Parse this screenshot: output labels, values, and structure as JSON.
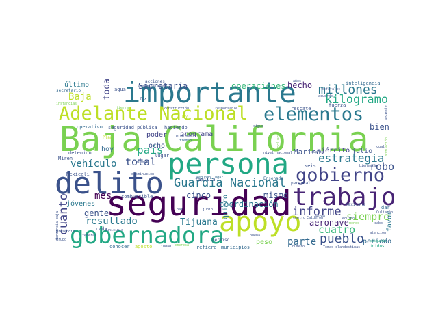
{
  "words": [
    {
      "text": "Baja California",
      "color": "#7ad151"
    },
    {
      "text": "importante",
      "color": "#2a788e"
    },
    {
      "text": "persona",
      "color": "#22a884"
    },
    {
      "text": "seguridad",
      "color": "#440154"
    },
    {
      "text": "delito",
      "color": "#3b528b"
    },
    {
      "text": "apoyo",
      "color": "#bddf26"
    },
    {
      "text": "gobernadora",
      "color": "#22a884"
    },
    {
      "text": "trabajo",
      "color": "#482475"
    },
    {
      "text": "Adelante Nacional",
      "color": "#bddf26"
    },
    {
      "text": "elementos",
      "color": "#2a788e"
    },
    {
      "text": "gobierno",
      "color": "#414487"
    },
    {
      "text": "Guardia Nacional",
      "color": "#2a788e"
    },
    {
      "text": "millones",
      "color": "#2a788e"
    },
    {
      "text": "kilogramo",
      "color": "#22a884"
    },
    {
      "text": "estrategia",
      "color": "#2a788e"
    },
    {
      "text": "vehículo",
      "color": "#2a788e"
    },
    {
      "text": "país",
      "color": "#22a884"
    },
    {
      "text": "total",
      "color": "#3b528b"
    },
    {
      "text": "cuanto",
      "color": "#414487"
    },
    {
      "text": "resultado",
      "color": "#2a788e"
    },
    {
      "text": "informe",
      "color": "#414487"
    },
    {
      "text": "pueblo",
      "color": "#3b528b"
    },
    {
      "text": "cuatro",
      "color": "#35b779"
    },
    {
      "text": "siempre",
      "color": "#7ad151"
    },
    {
      "text": "parte",
      "color": "#31688e"
    },
    {
      "text": "Tijuana",
      "color": "#2a788e"
    },
    {
      "text": "aeronave",
      "color": "#482475"
    },
    {
      "text": "robo",
      "color": "#3b528b"
    },
    {
      "text": "Baja",
      "color": "#bddf26"
    },
    {
      "text": "toda",
      "color": "#414487"
    },
    {
      "text": "Secretaría",
      "color": "#3b528b"
    },
    {
      "text": "operaciones",
      "color": "#35b779"
    },
    {
      "text": "hecho",
      "color": "#482475"
    },
    {
      "text": "mes",
      "color": "#440154"
    },
    {
      "text": "gente",
      "color": "#3b528b"
    },
    {
      "text": "cinco",
      "color": "#3b528b"
    },
    {
      "text": "Marina",
      "color": "#3b528b"
    },
    {
      "text": "Ejército",
      "color": "#414487"
    },
    {
      "text": "julio",
      "color": "#3b528b"
    },
    {
      "text": "bien",
      "color": "#3b528b"
    },
    {
      "text": "coordinación",
      "color": "#2a788e"
    },
    {
      "text": "mismo",
      "color": "#3b528b"
    },
    {
      "text": "jóvenes",
      "color": "#2a788e"
    },
    {
      "text": "último",
      "color": "#2a788e"
    },
    {
      "text": "hoy",
      "color": "#31688e"
    },
    {
      "text": "ocho",
      "color": "#3b528b"
    },
    {
      "text": "poder",
      "color": "#414487"
    },
    {
      "text": "programa",
      "color": "#414487"
    },
    {
      "text": "peso",
      "color": "#7ad151"
    },
    {
      "text": "periodo",
      "color": "#31688e"
    },
    {
      "text": "favor",
      "color": "#2a788e"
    },
    {
      "text": "quiero",
      "color": "#2a788e"
    },
    {
      "text": "inteligencia",
      "color": "#31688e"
    },
    {
      "text": "seguridad pública",
      "color": "#3b528b"
    },
    {
      "text": "haciendo",
      "color": "#3b528b"
    },
    {
      "text": "operativo",
      "color": "#31688e"
    },
    {
      "text": "detenido",
      "color": "#3b528b"
    },
    {
      "text": "Miren",
      "color": "#3b528b"
    },
    {
      "text": "Mexicali",
      "color": "#3b528b"
    },
    {
      "text": "combustible",
      "color": "#3b528b"
    },
    {
      "text": "cada",
      "color": "#3b528b"
    },
    {
      "text": "conocer",
      "color": "#31688e"
    },
    {
      "text": "agosto",
      "color": "#bddf26"
    },
    {
      "text": "refiere",
      "color": "#31688e"
    },
    {
      "text": "municipios",
      "color": "#31688e"
    },
    {
      "text": "dar",
      "color": "#31688e"
    },
    {
      "text": "familia",
      "color": "#3b528b"
    },
    {
      "text": "seis",
      "color": "#3b528b"
    },
    {
      "text": "Ensenada",
      "color": "#31688e"
    },
    {
      "text": "lugar",
      "color": "#3b528b"
    },
    {
      "text": "fuerza",
      "color": "#3b528b"
    },
    {
      "text": "rescate",
      "color": "#3b528b"
    },
    {
      "text": "agua",
      "color": "#3b528b"
    },
    {
      "text": "evento",
      "color": "#3b528b"
    },
    {
      "text": "secretario",
      "color": "#31688e"
    },
    {
      "text": "acciones",
      "color": "#3b528b"
    },
    {
      "text": "administración",
      "color": "#3b528b"
    },
    {
      "text": "años",
      "color": "#3b528b"
    },
    {
      "text": "tierra",
      "color": "#7ad151"
    },
    {
      "text": "Plan",
      "color": "#bddf26"
    },
    {
      "text": "construcción",
      "color": "#3b528b"
    },
    {
      "text": "responsable",
      "color": "#3b528b"
    },
    {
      "text": "problemas",
      "color": "#3b528b"
    },
    {
      "text": "tiempo",
      "color": "#31688e"
    },
    {
      "text": "sigue",
      "color": "#3b528b"
    },
    {
      "text": "estatales",
      "color": "#3b528b"
    },
    {
      "text": "acuerdo",
      "color": "#3b528b"
    },
    {
      "text": "mexicano",
      "color": "#3b528b"
    },
    {
      "text": "personal",
      "color": "#3b528b"
    },
    {
      "text": "nivel nacional",
      "color": "#3b528b"
    },
    {
      "text": "bienestar",
      "color": "#3b528b"
    },
    {
      "text": "segundo lugar",
      "color": "#31688e"
    },
    {
      "text": "paz",
      "color": "#3b528b"
    },
    {
      "text": "junio",
      "color": "#3b528b"
    },
    {
      "text": "permiso",
      "color": "#3b528b"
    },
    {
      "text": "buena",
      "color": "#3b528b"
    },
    {
      "text": "número",
      "color": "#3b528b"
    },
    {
      "text": "Unidos",
      "color": "#22a884"
    },
    {
      "text": "Culiacán",
      "color": "#3b528b"
    },
    {
      "text": "atención",
      "color": "#3b528b"
    },
    {
      "text": "equipo",
      "color": "#3b528b"
    },
    {
      "text": "centro",
      "color": "#3b528b"
    },
    {
      "text": "aéreo",
      "color": "#3b528b"
    },
    {
      "text": "Ciudad",
      "color": "#3b528b"
    },
    {
      "text": "empresa",
      "color": "#7ad151"
    },
    {
      "text": "Tomas clandestinas",
      "color": "#3b528b"
    },
    {
      "text": "grupo",
      "color": "#3b528b"
    },
    {
      "text": "presencia",
      "color": "#3b528b"
    },
    {
      "text": "federal",
      "color": "#3b528b"
    },
    {
      "text": "municipio",
      "color": "#3b528b"
    },
    {
      "text": "cual",
      "color": "#3b528b"
    },
    {
      "text": "droga",
      "color": "#3b528b"
    },
    {
      "text": "disminución",
      "color": "#3b528b"
    },
    {
      "text": "búsqueda",
      "color": "#22a884"
    },
    {
      "text": "Fox",
      "color": "#3b528b"
    },
    {
      "text": "cabo",
      "color": "#3b528b"
    },
    {
      "text": "menos",
      "color": "#7ad151"
    },
    {
      "text": "Calderón",
      "color": "#3b528b"
    },
    {
      "text": "cuenta",
      "color": "#3b528b"
    },
    {
      "text": "ley",
      "color": "#bddf26"
    },
    {
      "text": "incluso",
      "color": "#7ad151"
    },
    {
      "text": "instancias",
      "color": "#7ad151"
    },
    {
      "text": "situación",
      "color": "#7ad151"
    },
    {
      "text": "tendencia baja",
      "color": "#3b528b"
    }
  ]
}
